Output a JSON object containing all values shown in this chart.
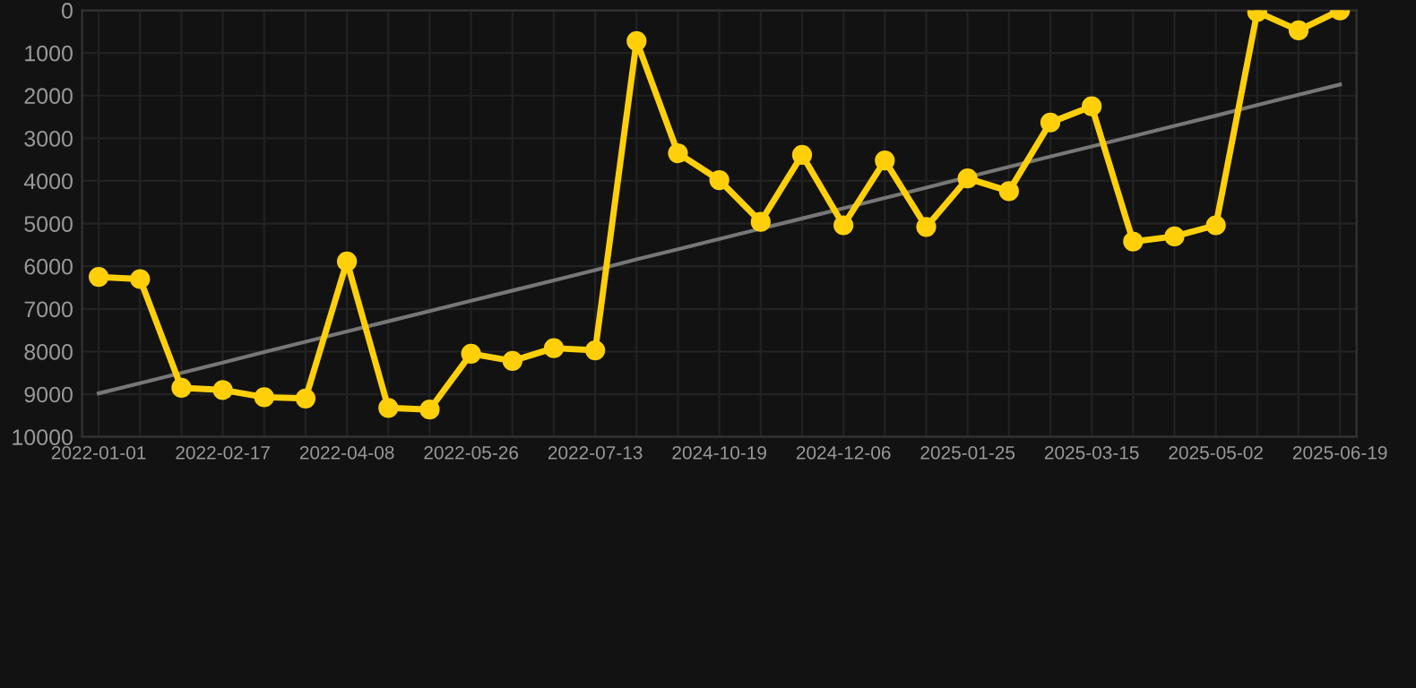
{
  "chart_data": {
    "type": "line",
    "categories": [
      "2022-01-01",
      null,
      null,
      "2022-02-17",
      null,
      null,
      "2022-04-08",
      null,
      null,
      "2022-05-26",
      null,
      null,
      "2022-07-13",
      null,
      null,
      "2024-10-19",
      null,
      null,
      "2024-12-06",
      null,
      null,
      "2025-01-25",
      null,
      null,
      "2025-03-15",
      null,
      null,
      "2025-05-02",
      null,
      null,
      "2025-06-19"
    ],
    "series": [
      {
        "color": "#ffd00a",
        "values": [
          6250,
          6300,
          8850,
          8900,
          9070,
          9100,
          5890,
          9320,
          9360,
          8050,
          8220,
          7920,
          7970,
          720,
          3350,
          3980,
          4960,
          3390,
          5040,
          3520,
          5080,
          3940,
          4240,
          2630,
          2250,
          5420,
          5300,
          5040,
          40,
          470,
          0
        ]
      },
      {
        "type": "line",
        "color": "#777777",
        "marker": "none",
        "values": [
          8980,
          8740,
          8500,
          8260,
          8010,
          7770,
          7530,
          7290,
          7050,
          6810,
          6570,
          6330,
          6090,
          5840,
          5600,
          5360,
          5120,
          4880,
          4640,
          4400,
          4160,
          3910,
          3670,
          3430,
          3190,
          2950,
          2710,
          2470,
          2220,
          1980,
          1740
        ]
      }
    ],
    "ylim": [
      10000,
      0
    ],
    "yticks": [
      0,
      1000,
      2000,
      3000,
      4000,
      5000,
      6000,
      7000,
      8000,
      9000,
      10000
    ],
    "grid": true,
    "marker": "circle",
    "line_style": "solid"
  }
}
